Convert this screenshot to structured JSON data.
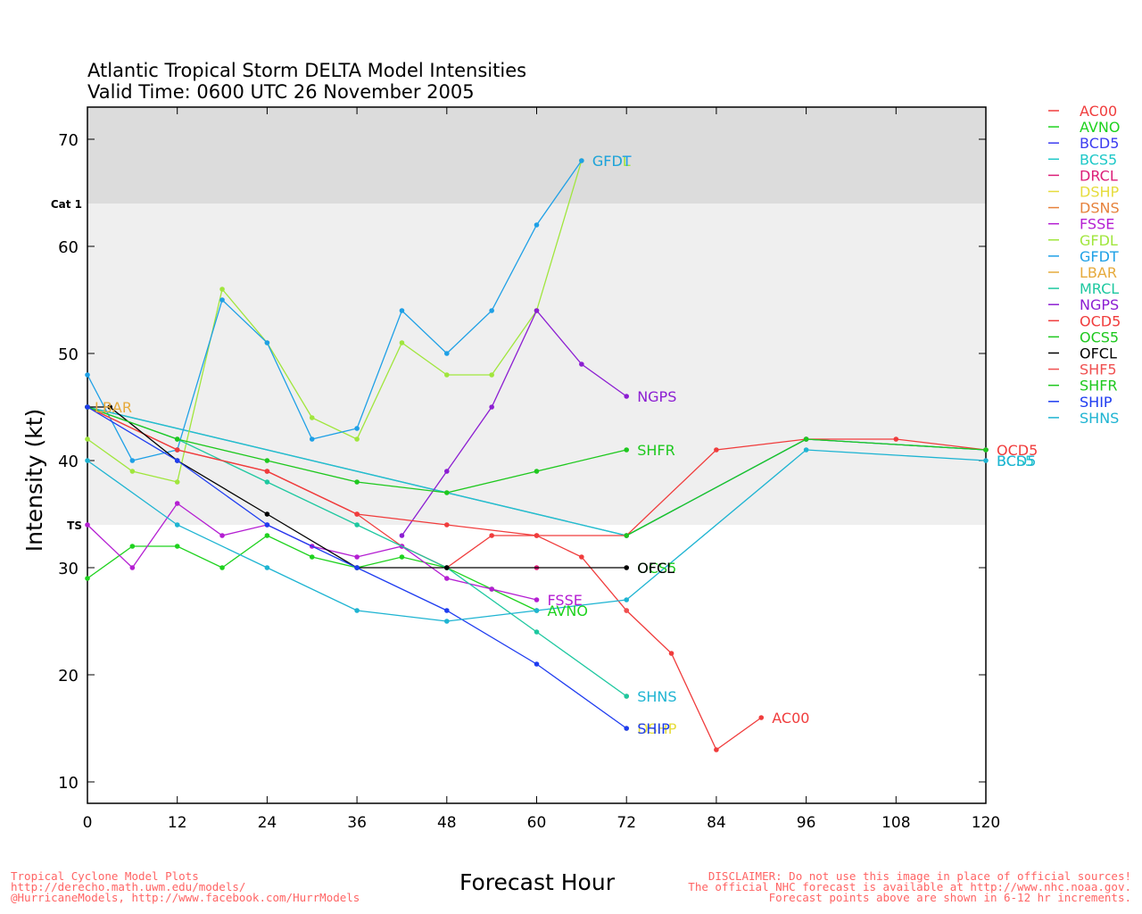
{
  "footer": {
    "left": [
      "Tropical Cyclone Model Plots",
      "http://derecho.math.uwm.edu/models/",
      "@HurricaneModels, http://www.facebook.com/HurrModels"
    ],
    "right": [
      "DISCLAIMER: Do not use this image in place of official sources!",
      "The official NHC forecast is available at http://www.nhc.noaa.gov.",
      "Forecast points above are shown in 6-12 hr increments."
    ]
  },
  "chart_data": {
    "type": "line",
    "title": [
      "Atlantic Tropical Storm DELTA Model Intensities",
      "Valid Time: 0600 UTC 26 November 2005"
    ],
    "xlabel": "Forecast Hour",
    "ylabel": "Intensity (kt)",
    "xlim": [
      0,
      120
    ],
    "ylim": [
      8,
      73
    ],
    "xticks": [
      0,
      12,
      24,
      36,
      48,
      60,
      72,
      84,
      96,
      108,
      120
    ],
    "yticks": [
      10,
      20,
      30,
      40,
      50,
      60,
      70
    ],
    "bands": [
      {
        "from": 64,
        "to": 73,
        "color": "#dcdcdc",
        "label": "Cat 1"
      },
      {
        "from": 34,
        "to": 64,
        "color": "#efefef",
        "label": "TS"
      }
    ],
    "legend_position": "right",
    "series": [
      {
        "name": "AC00",
        "color": "#f03c3c",
        "x": [
          0,
          12,
          24,
          36,
          42,
          48,
          54,
          60,
          66,
          72,
          78,
          84,
          90
        ],
        "y": [
          45,
          41,
          39,
          35,
          32,
          30,
          33,
          33,
          31,
          26,
          22,
          13,
          16
        ],
        "end_label": "AC00"
      },
      {
        "name": "AVNO",
        "color": "#1ed21e",
        "x": [
          0,
          6,
          12,
          18,
          24,
          30,
          36,
          42,
          48,
          54,
          60
        ],
        "y": [
          29,
          32,
          32,
          30,
          33,
          31,
          30,
          31,
          30,
          28,
          26
        ],
        "end_label": "AVNO"
      },
      {
        "name": "BCD5",
        "color": "#3c3cf0",
        "x": [
          0,
          72,
          96,
          120
        ],
        "y": [
          45,
          33,
          42,
          41
        ],
        "end_label": null
      },
      {
        "name": "BCS5",
        "color": "#1ec8c8",
        "x": [
          0,
          72,
          96,
          120
        ],
        "y": [
          45,
          33,
          42,
          41
        ],
        "end_label": null
      },
      {
        "name": "DRCL",
        "color": "#dc1e78",
        "x": [
          60
        ],
        "y": [
          30
        ],
        "end_label": null
      },
      {
        "name": "DSHP",
        "color": "#e6dc3c",
        "x": [
          72
        ],
        "y": [
          15
        ],
        "end_label": null
      },
      {
        "name": "DSNS",
        "color": "#e6823c",
        "x": [
          72
        ],
        "y": [
          18
        ],
        "end_label": null
      },
      {
        "name": "FSSE",
        "color": "#b41ed2",
        "x": [
          0,
          6,
          12,
          18,
          24,
          30,
          36,
          42,
          48,
          54,
          60
        ],
        "y": [
          34,
          30,
          36,
          33,
          34,
          32,
          31,
          32,
          29,
          28,
          27
        ],
        "end_label": "FSSE"
      },
      {
        "name": "GFDL",
        "color": "#a0e63c",
        "x": [
          0,
          6,
          12,
          18,
          24,
          30,
          36,
          42,
          48,
          54,
          60,
          66
        ],
        "y": [
          42,
          39,
          38,
          56,
          51,
          44,
          42,
          51,
          48,
          48,
          54,
          68
        ],
        "end_label": null
      },
      {
        "name": "GFDT",
        "color": "#1ea0e6",
        "x": [
          0,
          6,
          12,
          18,
          24,
          30,
          36,
          42,
          48,
          54,
          60,
          66
        ],
        "y": [
          48,
          40,
          41,
          55,
          51,
          42,
          43,
          54,
          50,
          54,
          62,
          68
        ],
        "end_label": "GFDT"
      },
      {
        "name": "LBAR",
        "color": "#e6aa3c",
        "x": [
          0
        ],
        "y": [
          45
        ],
        "end_label": "LBAR"
      },
      {
        "name": "MRCL",
        "color": "#1ec8a0",
        "x": [
          0,
          12,
          24,
          36,
          48,
          60,
          72
        ],
        "y": [
          45,
          42,
          38,
          34,
          30,
          24,
          18
        ],
        "end_label": null
      },
      {
        "name": "NGPS",
        "color": "#8c1ed2",
        "x": [
          42,
          48,
          54,
          60,
          66,
          72
        ],
        "y": [
          33,
          39,
          45,
          54,
          49,
          46
        ],
        "end_label": "NGPS"
      },
      {
        "name": "OCD5",
        "color": "#f03c3c",
        "x": [
          0,
          12,
          24,
          36,
          48,
          60,
          72,
          84,
          96,
          108,
          120
        ],
        "y": [
          45,
          41,
          39,
          35,
          34,
          33,
          33,
          41,
          42,
          42,
          41
        ],
        "end_label": "OCD5"
      },
      {
        "name": "OCS5",
        "color": "#1ec81e",
        "x": [
          72,
          96,
          120
        ],
        "y": [
          33,
          42,
          41
        ],
        "end_label": null
      },
      {
        "name": "OFCL",
        "color": "#000000",
        "x": [
          0,
          3,
          12,
          24,
          36,
          48,
          72
        ],
        "y": [
          45,
          45,
          40,
          35,
          30,
          30,
          30
        ],
        "end_label": "OFCL"
      },
      {
        "name": "SHF5",
        "color": "#f05050",
        "x": [
          72
        ],
        "y": [
          26
        ],
        "end_label": null
      },
      {
        "name": "SHFR",
        "color": "#1ec81e",
        "x": [
          0,
          12,
          24,
          36,
          48,
          60,
          72
        ],
        "y": [
          45,
          42,
          40,
          38,
          37,
          39,
          41
        ],
        "end_label": "SHFR"
      },
      {
        "name": "SHIP",
        "color": "#1e3cf0",
        "x": [
          0,
          12,
          24,
          36,
          48,
          60,
          72
        ],
        "y": [
          45,
          40,
          34,
          30,
          26,
          21,
          15
        ],
        "end_label": "SHIP"
      },
      {
        "name": "SHNS",
        "color": "#1eb4d2",
        "x": [
          0,
          12,
          24,
          36,
          48,
          60,
          72,
          96,
          120
        ],
        "y": [
          40,
          34,
          30,
          26,
          25,
          26,
          27,
          41,
          40
        ],
        "end_label": "BCD5"
      }
    ],
    "extra_labels": [
      {
        "text": "SHNS",
        "x": 72,
        "y": 18,
        "color": "#1eb4d2"
      },
      {
        "text": "OCS5",
        "x": 72,
        "y": 30,
        "color": "#1ec81e"
      },
      {
        "text": "GFDL",
        "x": 66,
        "y": 68,
        "color": "#a0e63c"
      },
      {
        "text": "BCS5",
        "x": 120,
        "y": 40,
        "color": "#1ec8c8"
      },
      {
        "text": "DSHP",
        "x": 72,
        "y": 15,
        "color": "#e6dc3c"
      }
    ]
  }
}
